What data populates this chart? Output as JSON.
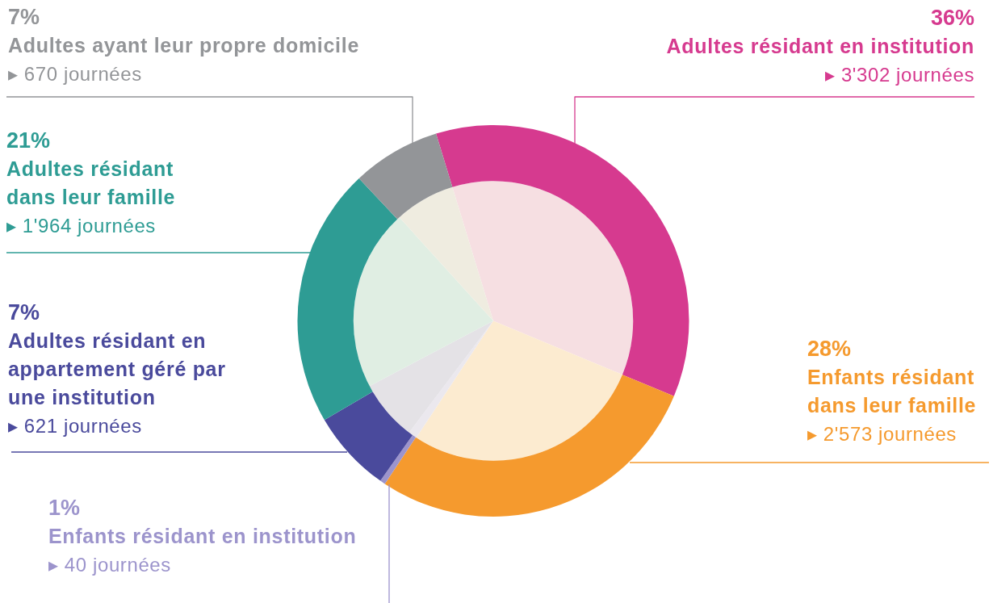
{
  "chart_data": {
    "type": "donut",
    "categories": [
      "Adultes résidant en institution",
      "Enfants résidant dans leur famille",
      "Enfants résidant en institution",
      "Adultes résidant en appartement géré par une institution",
      "Adultes résidant dans leur famille",
      "Adultes ayant leur propre domicile"
    ],
    "series": [
      {
        "values": [
          3302,
          2573,
          40,
          621,
          1964,
          670
        ],
        "colors": [
          "#d63a8f",
          "#f59a2e",
          "#9c94cc",
          "#4a4a9c",
          "#2e9c94",
          "#939598"
        ],
        "value_labels": [
          "▸ 3'302 journées",
          "▸ 2'573 journées",
          "▸ 40 journées",
          "▸ 621 journées",
          "▸ 1'964 journées",
          "▸ 670 journées"
        ]
      },
      {
        "values": [
          36,
          28,
          1,
          7,
          21,
          7
        ],
        "colors": [
          "#f6dfe2",
          "#fcebd0",
          "#ebe8ee",
          "#e4e2e6",
          "#e0eee3",
          "#efece0"
        ]
      }
    ],
    "annotations": [
      "36%",
      "28%",
      "1%",
      "7%",
      "21%",
      "7%"
    ]
  }
}
